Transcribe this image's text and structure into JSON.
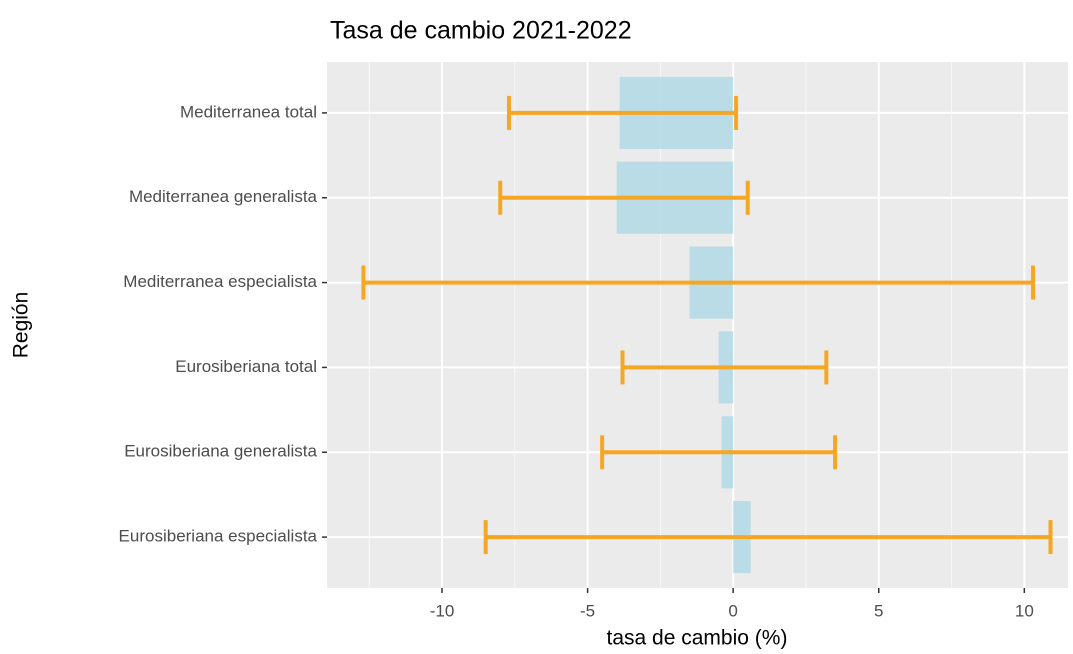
{
  "chart_data": {
    "type": "bar_errorbar",
    "orientation": "horizontal",
    "title": "Tasa de cambio 2021-2022",
    "xlabel": "tasa de cambio (%)",
    "ylabel": "Región",
    "categories": [
      "Mediterranea total",
      "Mediterranea generalista",
      "Mediterranea especialista",
      "Eurosiberiana total",
      "Eurosiberiana generalista",
      "Eurosiberiana especialista"
    ],
    "values": [
      -3.9,
      -4.0,
      -1.5,
      -0.5,
      -0.4,
      0.6
    ],
    "ci_low": [
      -7.7,
      -8.0,
      -12.7,
      -3.8,
      -4.5,
      -8.5
    ],
    "ci_high": [
      0.1,
      0.5,
      10.3,
      3.2,
      3.5,
      10.9
    ],
    "color": "#add8e6",
    "error_color": "#f5a623",
    "xlim": [
      -13.95,
      11.5
    ],
    "xticks": [
      -10,
      -5,
      0,
      5,
      10
    ],
    "grid": true
  }
}
